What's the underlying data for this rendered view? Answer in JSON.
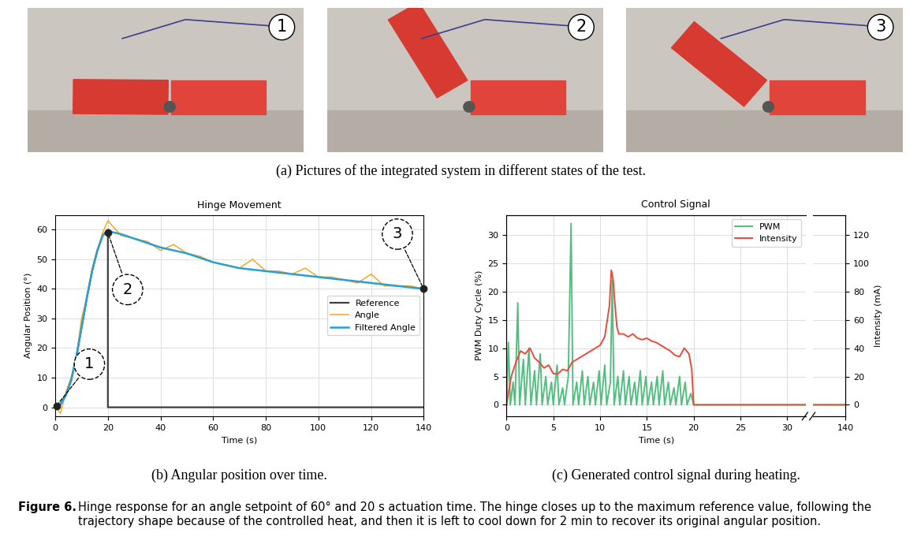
{
  "photos": {
    "labels": [
      "1",
      "2",
      "3"
    ],
    "caption": "(a) Pictures of the integrated system in different states of the test."
  },
  "chart_data": [
    {
      "type": "line",
      "title": "Hinge Movement",
      "x_label": "Time (s)",
      "y_label": "Angular Position (°)",
      "caption": "(b) Angular position over time.",
      "xlim": [
        0,
        140
      ],
      "xticks": [
        0,
        20,
        40,
        60,
        80,
        100,
        120,
        140
      ],
      "ylim": [
        -3,
        65
      ],
      "yticks": [
        0,
        10,
        20,
        30,
        40,
        50,
        60
      ],
      "grid": true,
      "legend": "center right",
      "series": [
        {
          "name": "Reference",
          "color": "#404040",
          "x": [
            0,
            2,
            4,
            6,
            8,
            10,
            12,
            14,
            16,
            18,
            20,
            20,
            140
          ],
          "values": [
            0,
            1,
            4,
            9,
            17,
            27,
            37,
            46,
            53,
            58,
            60,
            0,
            0
          ]
        },
        {
          "name": "Angle",
          "color": "#f5a623",
          "x": [
            0,
            2,
            4,
            6,
            8,
            10,
            12,
            14,
            16,
            18,
            20,
            25,
            30,
            35,
            40,
            45,
            50,
            55,
            60,
            65,
            70,
            75,
            80,
            85,
            90,
            95,
            100,
            105,
            110,
            115,
            120,
            125,
            130,
            135,
            140
          ],
          "values": [
            0,
            -2,
            5,
            10,
            17,
            30,
            37,
            47,
            53,
            59,
            63,
            58,
            57,
            56,
            53,
            55,
            52,
            51,
            49,
            48,
            47,
            50,
            46,
            46,
            45,
            47,
            44,
            44,
            43,
            42,
            45,
            41,
            41,
            41,
            40
          ]
        },
        {
          "name": "Filtered Angle",
          "color": "#2a9fd6",
          "x": [
            0,
            2,
            4,
            6,
            8,
            10,
            12,
            14,
            16,
            18,
            20,
            25,
            30,
            35,
            40,
            45,
            50,
            55,
            60,
            65,
            70,
            75,
            80,
            85,
            90,
            95,
            100,
            105,
            110,
            115,
            120,
            125,
            130,
            135,
            140
          ],
          "values": [
            0,
            1,
            4,
            9,
            17,
            27,
            37,
            46,
            53,
            58,
            59.5,
            58.5,
            57,
            55.5,
            54,
            53,
            52,
            50.5,
            49,
            48,
            47,
            46.5,
            46,
            45.5,
            45,
            44.5,
            44,
            43.5,
            43,
            42.5,
            42,
            41.5,
            41,
            40.5,
            40
          ]
        }
      ],
      "annotations": [
        {
          "text": "1",
          "x": 0.5,
          "y": 0.5
        },
        {
          "text": "2",
          "x": 20,
          "y": 59
        },
        {
          "text": "3",
          "x": 140,
          "y": 40
        }
      ]
    },
    {
      "type": "line",
      "title": "Control Signal",
      "x_label": "Time (s)",
      "y_label": "PWM Duty Cycle (%)",
      "y2_label": "Intensity (mA)",
      "caption": "(c) Generated control signal during heating.",
      "x_segments": [
        {
          "xlim": [
            0,
            32
          ],
          "xticks": [
            0,
            5,
            10,
            15,
            20,
            25,
            30
          ]
        },
        {
          "xlim": [
            132,
            140
          ],
          "xticks": [
            140
          ]
        }
      ],
      "ylim": [
        -2,
        33.5
      ],
      "yticks": [
        0,
        5,
        10,
        15,
        20,
        25,
        30
      ],
      "y2lim": [
        -8,
        134
      ],
      "y2ticks": [
        0,
        20,
        40,
        60,
        80,
        100,
        120
      ],
      "grid": true,
      "legend": "upper right",
      "series": [
        {
          "name": "PWM",
          "color": "#52be80",
          "x": [
            0,
            0.2,
            0.4,
            0.7,
            0.9,
            1.2,
            1.4,
            1.8,
            2.0,
            2.4,
            2.6,
            3.0,
            3.2,
            3.6,
            3.8,
            4.2,
            4.4,
            4.8,
            5.0,
            5.4,
            5.6,
            6.0,
            6.2,
            6.6,
            6.9,
            7.1,
            7.5,
            7.7,
            8.1,
            8.3,
            8.7,
            8.9,
            9.3,
            9.5,
            9.9,
            10.1,
            10.5,
            10.7,
            11.1,
            11.3,
            11.5,
            11.9,
            12.1,
            12.5,
            12.7,
            13.1,
            13.3,
            13.7,
            13.9,
            14.3,
            14.5,
            14.9,
            15.1,
            15.5,
            15.7,
            16.1,
            16.3,
            16.7,
            16.9,
            17.3,
            17.5,
            17.9,
            18.1,
            18.5,
            18.7,
            19.1,
            19.3,
            19.7,
            20.0,
            140
          ],
          "values": [
            0,
            11,
            0,
            4,
            0,
            18,
            0,
            8,
            0,
            10,
            0,
            6,
            0,
            9,
            0,
            5,
            0,
            4,
            0,
            7,
            0,
            3,
            0,
            5,
            32,
            0,
            4,
            0,
            6,
            0,
            5,
            0,
            4,
            0,
            6,
            0,
            7,
            0,
            4,
            22,
            0,
            5,
            0,
            6,
            0,
            5,
            0,
            4,
            0,
            6,
            0,
            5,
            0,
            4,
            0,
            5,
            0,
            6,
            0,
            4,
            0,
            3,
            0,
            5,
            0,
            4,
            0,
            2,
            0,
            0
          ]
        },
        {
          "name": "Intensity",
          "color": "#e74c3c",
          "axis": "y2",
          "x": [
            0,
            0.5,
            1.0,
            1.5,
            2.0,
            2.5,
            3.0,
            3.5,
            4.0,
            4.5,
            5.0,
            5.5,
            6.0,
            6.5,
            7.0,
            7.5,
            8.0,
            8.5,
            9.0,
            9.5,
            10.0,
            10.5,
            11.0,
            11.2,
            11.4,
            11.6,
            11.8,
            12.0,
            12.5,
            13.0,
            13.5,
            14.0,
            14.5,
            15.0,
            15.5,
            16.0,
            16.5,
            17.0,
            17.5,
            18.0,
            18.5,
            19.0,
            19.5,
            19.8,
            20.0,
            140
          ],
          "values": [
            0,
            20,
            30,
            38,
            36,
            40,
            33,
            30,
            26,
            28,
            22,
            22,
            25,
            24,
            30,
            32,
            34,
            36,
            38,
            40,
            42,
            48,
            70,
            95,
            88,
            70,
            55,
            50,
            50,
            48,
            50,
            47,
            46,
            47,
            45,
            44,
            42,
            40,
            38,
            35,
            34,
            40,
            36,
            25,
            0,
            0
          ]
        }
      ]
    }
  ],
  "caption": {
    "label": "Figure 6.",
    "text": "Hinge response for an angle setpoint of 60° and 20 s actuation time. The hinge closes up to the maximum reference value, following the trajectory shape because of the controlled heat, and then it is left to cool down for 2 min to recover its original angular position."
  }
}
